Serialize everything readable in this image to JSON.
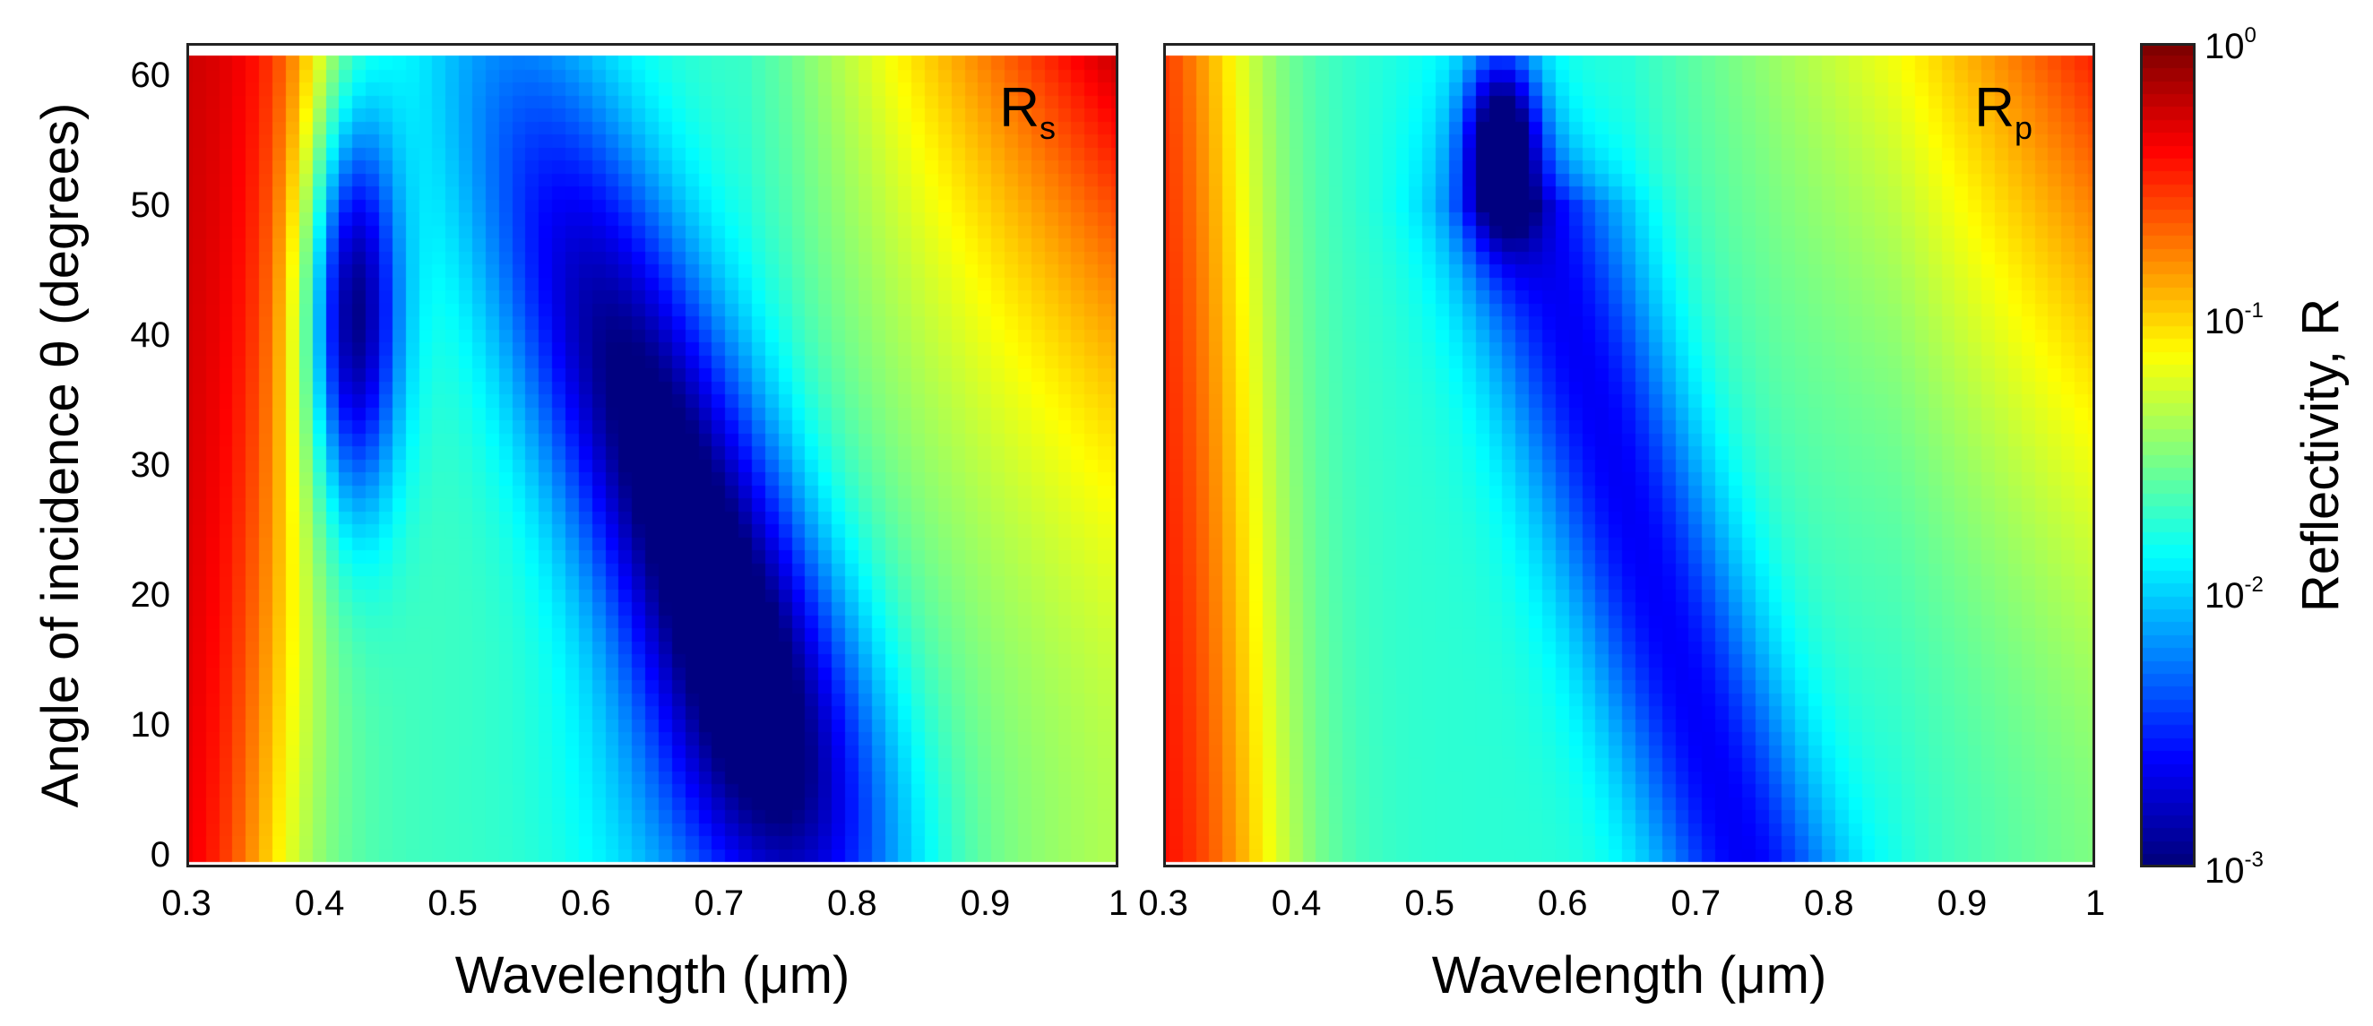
{
  "chart_data": [
    {
      "type": "heatmap",
      "panel_label": "R",
      "panel_label_sub": "s",
      "xlabel": "Wavelength (μm)",
      "ylabel": "Angle of incidence θ (degrees)",
      "xlim": [
        0.3,
        1.0
      ],
      "ylim": [
        0,
        60
      ],
      "xticks": [
        "0.3",
        "0.4",
        "0.5",
        "0.6",
        "0.7",
        "0.8",
        "0.9",
        "1"
      ],
      "yticks": [
        "0",
        "10",
        "20",
        "30",
        "40",
        "50",
        "60"
      ],
      "color_scale": "log10 reflectivity",
      "features": [
        {
          "description": "reflectivity minimum",
          "wavelength_um": 0.42,
          "angle_deg": 42,
          "log10R": -3.0
        },
        {
          "description": "reflectivity minimum",
          "wavelength_um": 0.66,
          "angle_deg": 28,
          "log10R": -3.0
        },
        {
          "description": "high reflectivity edge",
          "wavelength_um": 0.3,
          "angle_deg": 0,
          "log10R": -0.4
        }
      ]
    },
    {
      "type": "heatmap",
      "panel_label": "R",
      "panel_label_sub": "p",
      "xlabel": "Wavelength (μm)",
      "ylabel": "Angle of incidence θ (degrees)",
      "xlim": [
        0.3,
        1.0
      ],
      "ylim": [
        0,
        60
      ],
      "xticks": [
        "0.3",
        "0.4",
        "0.5",
        "0.6",
        "0.7",
        "0.8",
        "0.9",
        "1"
      ],
      "yticks": [
        "0",
        "10",
        "20",
        "30",
        "40",
        "50",
        "60"
      ],
      "color_scale": "log10 reflectivity",
      "features": [
        {
          "description": "reflectivity minimum",
          "wavelength_um": 0.56,
          "angle_deg": 55,
          "log10R": -3.0
        },
        {
          "description": "low reflectivity band",
          "wavelength_um": 0.73,
          "angle_deg": 5,
          "log10R": -2.7
        },
        {
          "description": "high reflectivity edge",
          "wavelength_um": 0.3,
          "angle_deg": 0,
          "log10R": -0.3
        }
      ]
    }
  ],
  "colorbar": {
    "title": "Reflectivity, R",
    "range_log10": [
      -3,
      0
    ],
    "ticks": [
      {
        "base": "10",
        "exp": "0",
        "log10": 0
      },
      {
        "base": "10",
        "exp": "-1",
        "log10": -1
      },
      {
        "base": "10",
        "exp": "-2",
        "log10": -2
      },
      {
        "base": "10",
        "exp": "-3",
        "log10": -3
      }
    ],
    "colormap": "jet"
  }
}
